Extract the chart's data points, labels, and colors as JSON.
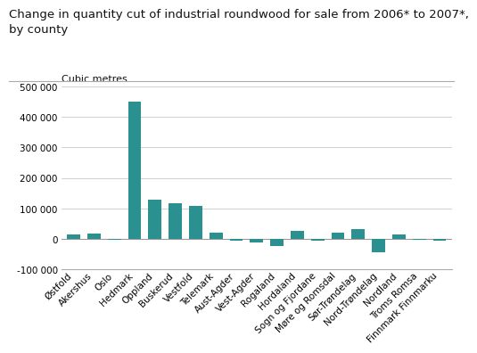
{
  "title_line1": "Change in quantity cut of industrial roundwood for sale from 2006* to 2007*,",
  "title_line2": "by county",
  "ylabel": "Cubic metres",
  "categories": [
    "Østfold",
    "Akershus",
    "Oslo",
    "Hedmark",
    "Oppland",
    "Buskerud",
    "Vestfold",
    "Telemark",
    "Aust-Agder",
    "Vest-Agder",
    "Rogaland",
    "Hordaland",
    "Sogn og Fjordane",
    "Møre og Romsdal",
    "Sør-Trøndelag",
    "Nord-Trøndelag",
    "Nordland",
    "Troms Romsa",
    "Finnmark Finnmarku"
  ],
  "values": [
    15000,
    17000,
    -2000,
    450000,
    128000,
    118000,
    110000,
    20000,
    -5000,
    -10000,
    -22000,
    28000,
    -5000,
    20000,
    32000,
    -42000,
    15000,
    -3000,
    -5000
  ],
  "bar_color": "#2a9090",
  "ylim": [
    -100000,
    500000
  ],
  "yticks": [
    -100000,
    0,
    100000,
    200000,
    300000,
    400000,
    500000
  ],
  "grid_color": "#d0d0d0",
  "background_color": "#ffffff",
  "title_fontsize": 9.5,
  "ylabel_fontsize": 8.0,
  "tick_fontsize": 7.5,
  "title_color": "#111111"
}
